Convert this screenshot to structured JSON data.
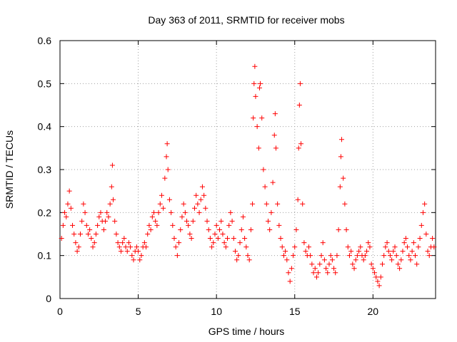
{
  "chart_data": {
    "type": "scatter",
    "title": "Day 363 of 2011, SRMTID for receiver mobs",
    "xlabel": "GPS time / hours",
    "ylabel": "SRMTID / TECUs",
    "xlim": [
      0,
      24
    ],
    "ylim": [
      0,
      0.6
    ],
    "xticks": [
      "0",
      "5",
      "10",
      "15",
      "20"
    ],
    "yticks": [
      "0",
      "0.1",
      "0.2",
      "0.3",
      "0.4",
      "0.5",
      "0.6"
    ],
    "grid": true,
    "marker": "plus",
    "color": "#ff0000",
    "series": [
      {
        "name": "SRMTID",
        "points": [
          [
            0.1,
            0.14
          ],
          [
            0.2,
            0.17
          ],
          [
            0.3,
            0.2
          ],
          [
            0.4,
            0.19
          ],
          [
            0.5,
            0.22
          ],
          [
            0.6,
            0.25
          ],
          [
            0.7,
            0.21
          ],
          [
            0.8,
            0.17
          ],
          [
            0.9,
            0.15
          ],
          [
            1.0,
            0.13
          ],
          [
            1.1,
            0.11
          ],
          [
            1.2,
            0.12
          ],
          [
            1.3,
            0.15
          ],
          [
            1.4,
            0.18
          ],
          [
            1.5,
            0.22
          ],
          [
            1.6,
            0.2
          ],
          [
            1.7,
            0.17
          ],
          [
            1.8,
            0.15
          ],
          [
            1.9,
            0.16
          ],
          [
            2.0,
            0.14
          ],
          [
            2.1,
            0.12
          ],
          [
            2.2,
            0.13
          ],
          [
            2.3,
            0.15
          ],
          [
            2.4,
            0.17
          ],
          [
            2.5,
            0.19
          ],
          [
            2.6,
            0.2
          ],
          [
            2.7,
            0.18
          ],
          [
            2.8,
            0.16
          ],
          [
            2.9,
            0.18
          ],
          [
            3.0,
            0.2
          ],
          [
            3.1,
            0.19
          ],
          [
            3.2,
            0.22
          ],
          [
            3.3,
            0.26
          ],
          [
            3.35,
            0.31
          ],
          [
            3.4,
            0.23
          ],
          [
            3.5,
            0.18
          ],
          [
            3.6,
            0.15
          ],
          [
            3.7,
            0.13
          ],
          [
            3.8,
            0.12
          ],
          [
            3.9,
            0.11
          ],
          [
            4.0,
            0.13
          ],
          [
            4.1,
            0.14
          ],
          [
            4.2,
            0.12
          ],
          [
            4.3,
            0.11
          ],
          [
            4.4,
            0.13
          ],
          [
            4.5,
            0.12
          ],
          [
            4.6,
            0.1
          ],
          [
            4.7,
            0.09
          ],
          [
            4.8,
            0.11
          ],
          [
            4.9,
            0.12
          ],
          [
            5.0,
            0.11
          ],
          [
            5.1,
            0.09
          ],
          [
            5.2,
            0.1
          ],
          [
            5.3,
            0.12
          ],
          [
            5.4,
            0.13
          ],
          [
            5.5,
            0.12
          ],
          [
            5.6,
            0.15
          ],
          [
            5.7,
            0.17
          ],
          [
            5.8,
            0.16
          ],
          [
            5.9,
            0.19
          ],
          [
            6.0,
            0.2
          ],
          [
            6.1,
            0.18
          ],
          [
            6.2,
            0.17
          ],
          [
            6.3,
            0.2
          ],
          [
            6.4,
            0.22
          ],
          [
            6.5,
            0.24
          ],
          [
            6.6,
            0.21
          ],
          [
            6.7,
            0.28
          ],
          [
            6.8,
            0.33
          ],
          [
            6.85,
            0.36
          ],
          [
            6.9,
            0.3
          ],
          [
            7.0,
            0.23
          ],
          [
            7.1,
            0.2
          ],
          [
            7.2,
            0.17
          ],
          [
            7.3,
            0.14
          ],
          [
            7.4,
            0.12
          ],
          [
            7.5,
            0.1
          ],
          [
            7.6,
            0.13
          ],
          [
            7.7,
            0.16
          ],
          [
            7.8,
            0.19
          ],
          [
            7.9,
            0.22
          ],
          [
            8.0,
            0.2
          ],
          [
            8.1,
            0.18
          ],
          [
            8.2,
            0.17
          ],
          [
            8.3,
            0.15
          ],
          [
            8.4,
            0.14
          ],
          [
            8.5,
            0.18
          ],
          [
            8.6,
            0.21
          ],
          [
            8.7,
            0.24
          ],
          [
            8.8,
            0.22
          ],
          [
            8.9,
            0.2
          ],
          [
            9.0,
            0.23
          ],
          [
            9.1,
            0.26
          ],
          [
            9.2,
            0.24
          ],
          [
            9.3,
            0.21
          ],
          [
            9.4,
            0.18
          ],
          [
            9.5,
            0.16
          ],
          [
            9.6,
            0.14
          ],
          [
            9.7,
            0.12
          ],
          [
            9.8,
            0.13
          ],
          [
            9.9,
            0.15
          ],
          [
            10.0,
            0.17
          ],
          [
            10.1,
            0.14
          ],
          [
            10.2,
            0.16
          ],
          [
            10.3,
            0.18
          ],
          [
            10.4,
            0.15
          ],
          [
            10.5,
            0.13
          ],
          [
            10.6,
            0.12
          ],
          [
            10.7,
            0.14
          ],
          [
            10.8,
            0.17
          ],
          [
            10.9,
            0.2
          ],
          [
            11.0,
            0.18
          ],
          [
            11.1,
            0.14
          ],
          [
            11.2,
            0.11
          ],
          [
            11.3,
            0.09
          ],
          [
            11.4,
            0.1
          ],
          [
            11.5,
            0.13
          ],
          [
            11.6,
            0.16
          ],
          [
            11.7,
            0.19
          ],
          [
            11.8,
            0.14
          ],
          [
            11.9,
            0.12
          ],
          [
            12.0,
            0.1
          ],
          [
            12.1,
            0.09
          ],
          [
            12.2,
            0.16
          ],
          [
            12.3,
            0.22
          ],
          [
            12.35,
            0.42
          ],
          [
            12.4,
            0.5
          ],
          [
            12.45,
            0.54
          ],
          [
            12.5,
            0.47
          ],
          [
            12.6,
            0.4
          ],
          [
            12.7,
            0.35
          ],
          [
            12.75,
            0.49
          ],
          [
            12.8,
            0.5
          ],
          [
            12.9,
            0.42
          ],
          [
            13.0,
            0.3
          ],
          [
            13.1,
            0.26
          ],
          [
            13.2,
            0.22
          ],
          [
            13.3,
            0.18
          ],
          [
            13.4,
            0.16
          ],
          [
            13.5,
            0.2
          ],
          [
            13.6,
            0.27
          ],
          [
            13.7,
            0.38
          ],
          [
            13.75,
            0.43
          ],
          [
            13.8,
            0.35
          ],
          [
            13.9,
            0.22
          ],
          [
            14.0,
            0.17
          ],
          [
            14.1,
            0.14
          ],
          [
            14.2,
            0.12
          ],
          [
            14.3,
            0.1
          ],
          [
            14.4,
            0.11
          ],
          [
            14.5,
            0.09
          ],
          [
            14.6,
            0.06
          ],
          [
            14.7,
            0.04
          ],
          [
            14.8,
            0.07
          ],
          [
            14.9,
            0.1
          ],
          [
            15.0,
            0.12
          ],
          [
            15.1,
            0.16
          ],
          [
            15.2,
            0.23
          ],
          [
            15.25,
            0.35
          ],
          [
            15.3,
            0.45
          ],
          [
            15.35,
            0.5
          ],
          [
            15.4,
            0.36
          ],
          [
            15.5,
            0.22
          ],
          [
            15.6,
            0.13
          ],
          [
            15.7,
            0.11
          ],
          [
            15.8,
            0.1
          ],
          [
            15.9,
            0.12
          ],
          [
            16.0,
            0.1
          ],
          [
            16.1,
            0.08
          ],
          [
            16.2,
            0.06
          ],
          [
            16.3,
            0.07
          ],
          [
            16.4,
            0.05
          ],
          [
            16.5,
            0.06
          ],
          [
            16.6,
            0.08
          ],
          [
            16.7,
            0.1
          ],
          [
            16.8,
            0.13
          ],
          [
            16.9,
            0.09
          ],
          [
            17.0,
            0.07
          ],
          [
            17.1,
            0.06
          ],
          [
            17.2,
            0.08
          ],
          [
            17.3,
            0.1
          ],
          [
            17.4,
            0.09
          ],
          [
            17.5,
            0.07
          ],
          [
            17.6,
            0.06
          ],
          [
            17.7,
            0.1
          ],
          [
            17.8,
            0.16
          ],
          [
            17.9,
            0.26
          ],
          [
            17.95,
            0.33
          ],
          [
            18.0,
            0.37
          ],
          [
            18.1,
            0.28
          ],
          [
            18.2,
            0.22
          ],
          [
            18.3,
            0.16
          ],
          [
            18.4,
            0.12
          ],
          [
            18.5,
            0.1
          ],
          [
            18.6,
            0.11
          ],
          [
            18.7,
            0.08
          ],
          [
            18.8,
            0.07
          ],
          [
            18.9,
            0.09
          ],
          [
            19.0,
            0.1
          ],
          [
            19.1,
            0.11
          ],
          [
            19.2,
            0.12
          ],
          [
            19.3,
            0.1
          ],
          [
            19.4,
            0.09
          ],
          [
            19.5,
            0.1
          ],
          [
            19.6,
            0.11
          ],
          [
            19.7,
            0.13
          ],
          [
            19.8,
            0.12
          ],
          [
            19.9,
            0.08
          ],
          [
            20.0,
            0.07
          ],
          [
            20.1,
            0.06
          ],
          [
            20.2,
            0.05
          ],
          [
            20.3,
            0.04
          ],
          [
            20.4,
            0.03
          ],
          [
            20.5,
            0.05
          ],
          [
            20.6,
            0.08
          ],
          [
            20.7,
            0.1
          ],
          [
            20.8,
            0.12
          ],
          [
            20.9,
            0.13
          ],
          [
            21.0,
            0.11
          ],
          [
            21.1,
            0.1
          ],
          [
            21.2,
            0.09
          ],
          [
            21.3,
            0.11
          ],
          [
            21.4,
            0.12
          ],
          [
            21.5,
            0.1
          ],
          [
            21.6,
            0.08
          ],
          [
            21.7,
            0.07
          ],
          [
            21.8,
            0.09
          ],
          [
            21.9,
            0.11
          ],
          [
            22.0,
            0.13
          ],
          [
            22.1,
            0.14
          ],
          [
            22.2,
            0.12
          ],
          [
            22.3,
            0.1
          ],
          [
            22.4,
            0.09
          ],
          [
            22.5,
            0.11
          ],
          [
            22.6,
            0.13
          ],
          [
            22.7,
            0.1
          ],
          [
            22.8,
            0.08
          ],
          [
            22.9,
            0.12
          ],
          [
            23.0,
            0.14
          ],
          [
            23.1,
            0.17
          ],
          [
            23.2,
            0.2
          ],
          [
            23.3,
            0.22
          ],
          [
            23.4,
            0.15
          ],
          [
            23.5,
            0.11
          ],
          [
            23.6,
            0.1
          ],
          [
            23.7,
            0.12
          ],
          [
            23.8,
            0.14
          ],
          [
            23.9,
            0.12
          ]
        ]
      }
    ]
  }
}
